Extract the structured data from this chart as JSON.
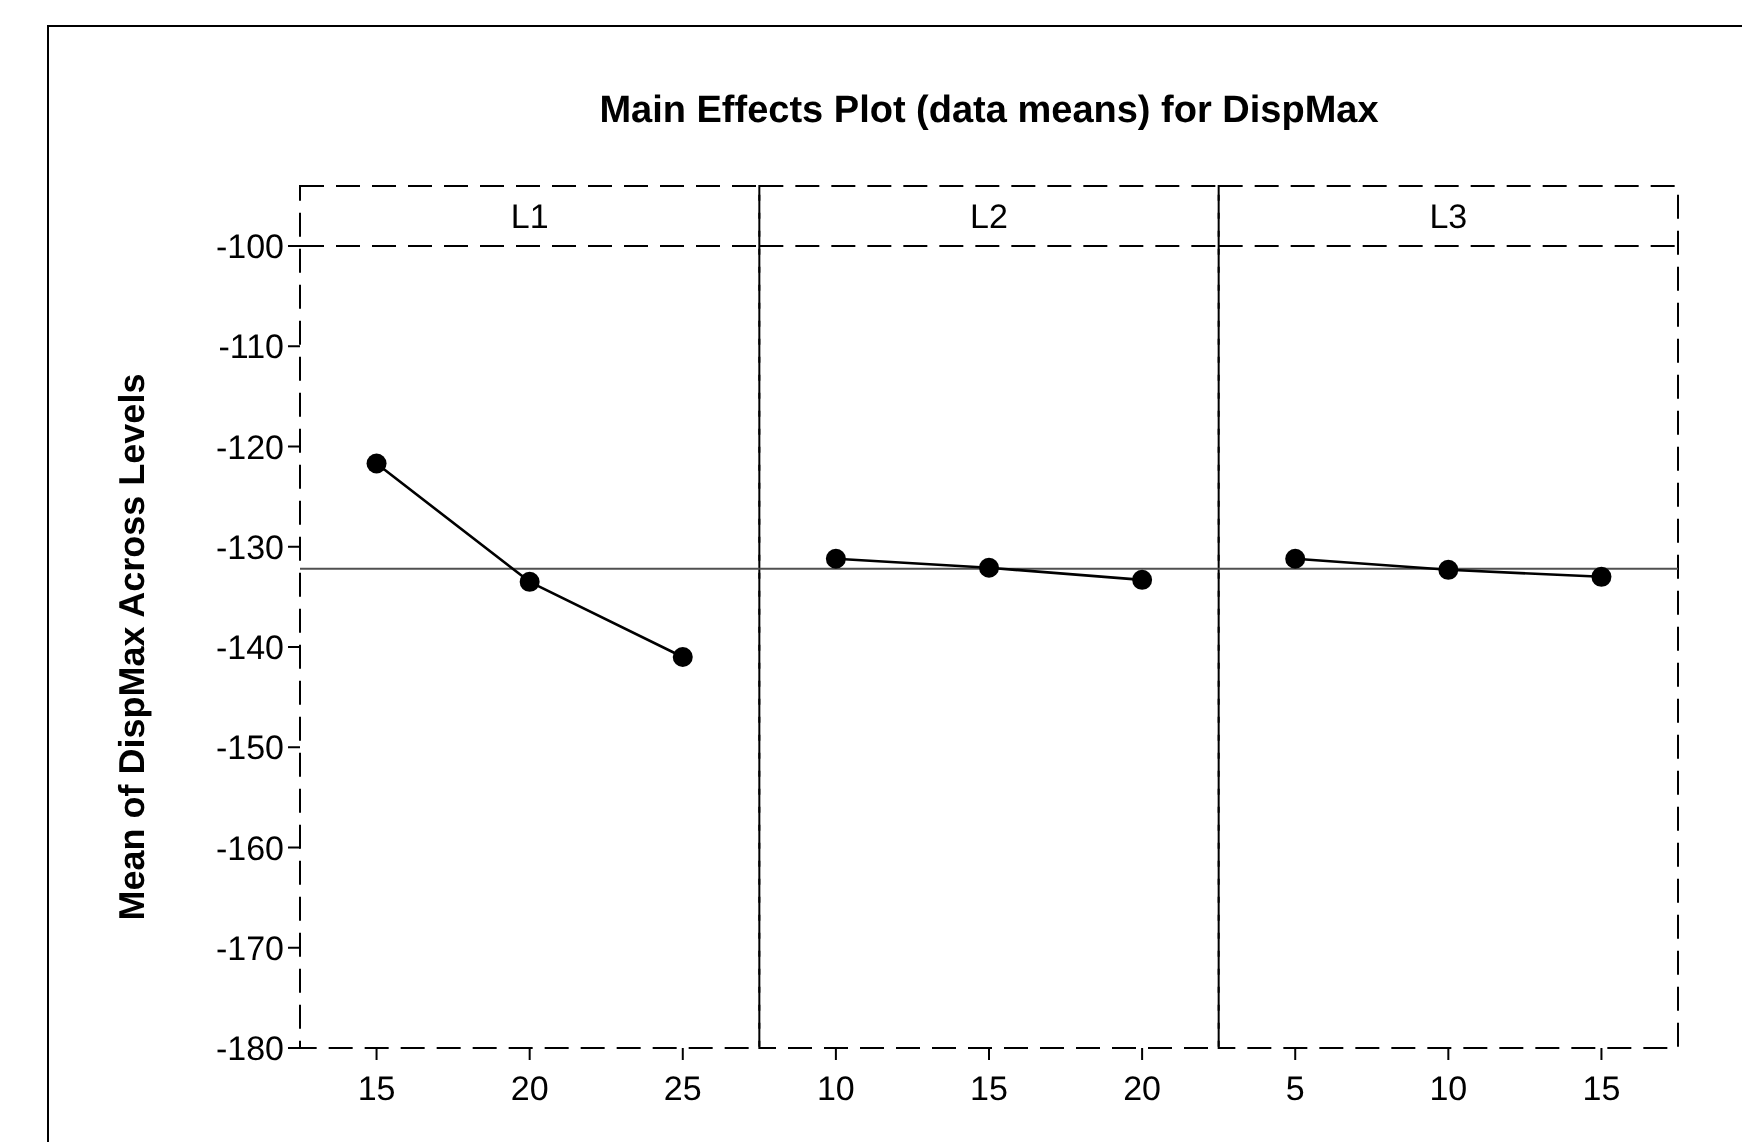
{
  "chart_data": [
    {
      "type": "line",
      "title": "Main Effects Plot (data means) for DispMax",
      "subtitle": "L1",
      "ylabel": "Mean of DispMax Across Levels",
      "categories": [
        "15",
        "20",
        "25"
      ],
      "series": [
        {
          "color": "#000000",
          "values": [
            -121.7,
            -133.5,
            -141.0
          ]
        }
      ],
      "ylim": [
        -180,
        -100
      ],
      "yticks": [
        -180,
        -170,
        -160,
        -150,
        -140,
        -130,
        -120,
        -110,
        -100
      ],
      "ref_lines": [
        {
          "axis": "y",
          "value": -132.2,
          "color": "#505050"
        }
      ],
      "marker": "circle",
      "line_style": "solid",
      "grid": false
    },
    {
      "type": "line",
      "subtitle": "L2",
      "categories": [
        "10",
        "15",
        "20"
      ],
      "series": [
        {
          "color": "#000000",
          "values": [
            -131.2,
            -132.1,
            -133.3
          ]
        }
      ],
      "ylim": [
        -180,
        -100
      ],
      "tick_labels": "x",
      "ref_lines": [
        {
          "axis": "y",
          "value": -132.2,
          "color": "#505050"
        }
      ],
      "marker": "circle",
      "line_style": "solid",
      "grid": false
    },
    {
      "type": "line",
      "subtitle": "L3",
      "categories": [
        "5",
        "10",
        "15"
      ],
      "series": [
        {
          "color": "#000000",
          "values": [
            -131.2,
            -132.3,
            -133.0
          ]
        }
      ],
      "ylim": [
        -180,
        -100
      ],
      "tick_labels": "x",
      "ref_lines": [
        {
          "axis": "y",
          "value": -132.2,
          "color": "#505050"
        }
      ],
      "marker": "circle",
      "line_style": "solid",
      "grid": false
    }
  ]
}
